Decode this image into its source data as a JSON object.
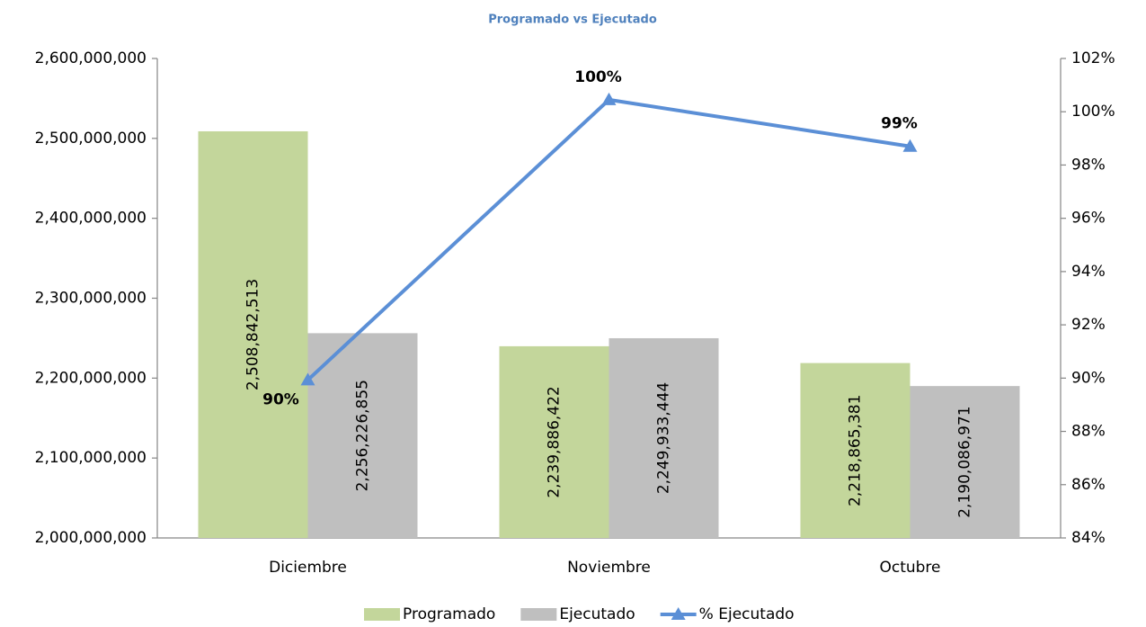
{
  "chart_data": {
    "type": "bar",
    "title": "Programado vs Ejecutado",
    "categories": [
      "Diciembre",
      "Noviembre",
      "Octubre"
    ],
    "series": [
      {
        "name": "Programado",
        "type": "bar",
        "color": "#c3d69b",
        "values": [
          2508842513,
          2239886422,
          2218865381
        ],
        "value_labels": [
          "2,508,842,513",
          "2,239,886,422",
          "2,218,865,381"
        ]
      },
      {
        "name": "Ejecutado",
        "type": "bar",
        "color": "#bfbfbf",
        "values": [
          2256226855,
          2249933444,
          2190086971
        ],
        "value_labels": [
          "2,256,226,855",
          "2,249,933,444",
          "2,190,086,971"
        ]
      },
      {
        "name": "% Ejecutado",
        "type": "line",
        "axis": "y2",
        "color": "#5b8fd6",
        "values": [
          89.93,
          100.45,
          98.7
        ],
        "value_labels": [
          "90%",
          "100%",
          "99%"
        ]
      }
    ],
    "ylim": [
      2000000000,
      2600000000
    ],
    "yticks": [
      {
        "value": 2000000000,
        "label": "2,000,000,000"
      },
      {
        "value": 2100000000,
        "label": "2,100,000,000"
      },
      {
        "value": 2200000000,
        "label": "2,200,000,000"
      },
      {
        "value": 2300000000,
        "label": "2,300,000,000"
      },
      {
        "value": 2400000000,
        "label": "2,400,000,000"
      },
      {
        "value": 2500000000,
        "label": "2,500,000,000"
      },
      {
        "value": 2600000000,
        "label": "2,600,000,000"
      }
    ],
    "y2lim": [
      84,
      102
    ],
    "y2ticks": [
      {
        "value": 84,
        "label": "84%"
      },
      {
        "value": 86,
        "label": "86%"
      },
      {
        "value": 88,
        "label": "88%"
      },
      {
        "value": 90,
        "label": "90%"
      },
      {
        "value": 92,
        "label": "92%"
      },
      {
        "value": 94,
        "label": "94%"
      },
      {
        "value": 96,
        "label": "96%"
      },
      {
        "value": 98,
        "label": "98%"
      },
      {
        "value": 100,
        "label": "100%"
      },
      {
        "value": 102,
        "label": "102%"
      }
    ],
    "legend": "bottom"
  }
}
